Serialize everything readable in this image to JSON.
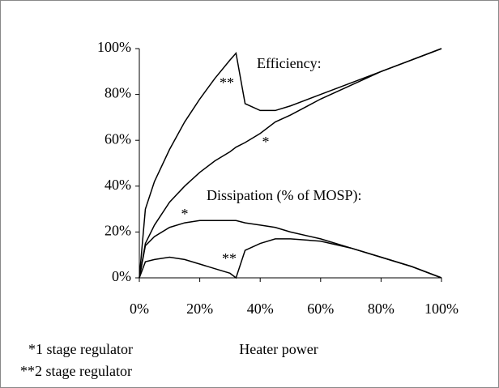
{
  "chart_data": {
    "type": "line",
    "x_label": "Heater power",
    "annotations": [
      "Efficiency:",
      "Dissipation (% of MOSP):",
      "*1 stage regulator",
      "**2 stage regulator"
    ],
    "x": [
      0,
      2,
      5,
      10,
      15,
      20,
      25,
      30,
      32,
      35,
      40,
      45,
      50,
      60,
      70,
      80,
      90,
      100
    ],
    "series": [
      {
        "name": "*",
        "color": "#000000",
        "values": [
          0,
          15,
          23,
          33,
          40,
          46,
          51,
          55,
          57,
          59,
          63,
          68,
          71,
          78,
          84,
          90,
          95,
          100
        ]
      },
      {
        "name": "**",
        "color": "#000000",
        "values": [
          0,
          30,
          42,
          56,
          68,
          78,
          87,
          95,
          98,
          76,
          73,
          73,
          75,
          80,
          85,
          90,
          95,
          100
        ]
      },
      {
        "name": "*",
        "color": "#000000",
        "values": [
          0,
          14,
          18,
          22,
          24,
          25,
          25,
          25,
          25,
          24,
          23,
          22,
          20,
          17,
          13,
          9,
          5,
          0
        ]
      },
      {
        "name": "**",
        "color": "#000000",
        "values": [
          0,
          7,
          8,
          9,
          8,
          6,
          4,
          2,
          0,
          12,
          15,
          17,
          17,
          16,
          13,
          9,
          5,
          0
        ]
      }
    ],
    "xlim": [
      0,
      100
    ],
    "ylim": [
      0,
      100
    ],
    "xticks": [
      {
        "value": 0,
        "label": "0%"
      },
      {
        "value": 20,
        "label": "20%"
      },
      {
        "value": 40,
        "label": "40%"
      },
      {
        "value": 60,
        "label": "60%"
      },
      {
        "value": 80,
        "label": "80%"
      },
      {
        "value": 100,
        "label": "100%"
      }
    ],
    "yticks": [
      {
        "value": 0,
        "label": "0%"
      },
      {
        "value": 20,
        "label": "20%"
      },
      {
        "value": 40,
        "label": "40%"
      },
      {
        "value": 60,
        "label": "60%"
      },
      {
        "value": 80,
        "label": "80%"
      },
      {
        "value": 100,
        "label": "100%"
      }
    ],
    "grid": false
  }
}
